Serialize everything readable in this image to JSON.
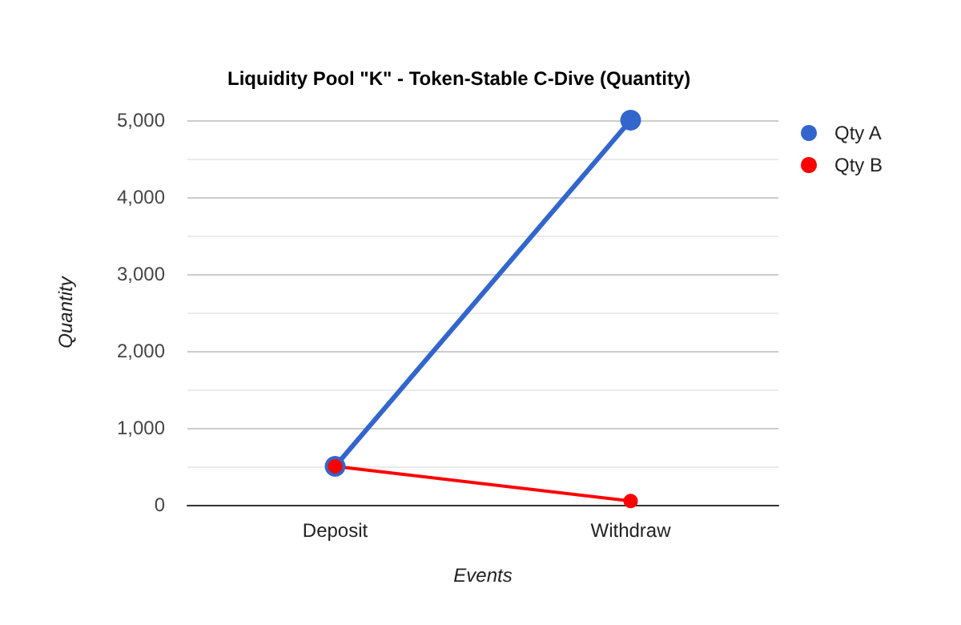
{
  "chart_data": {
    "type": "line",
    "title": "Liquidity Pool \"K\" - Token-Stable C-Dive (Quantity)",
    "xlabel": "Events",
    "ylabel": "Quantity",
    "categories": [
      "Deposit",
      "Withdraw"
    ],
    "series": [
      {
        "name": "Qty A",
        "color": "#3366cc",
        "values": [
          500,
          5000
        ]
      },
      {
        "name": "Qty B",
        "color": "#ff0000",
        "values": [
          500,
          50
        ]
      }
    ],
    "ylim": [
      0,
      5000
    ],
    "yticks": [
      {
        "value": 0,
        "label": "0"
      },
      {
        "value": 1000,
        "label": "1,000"
      },
      {
        "value": 2000,
        "label": "2,000"
      },
      {
        "value": 3000,
        "label": "3,000"
      },
      {
        "value": 4000,
        "label": "4,000"
      },
      {
        "value": 5000,
        "label": "5,000"
      }
    ],
    "grid": true,
    "legend": "top right",
    "marker": "circle",
    "line_style": "solid"
  }
}
